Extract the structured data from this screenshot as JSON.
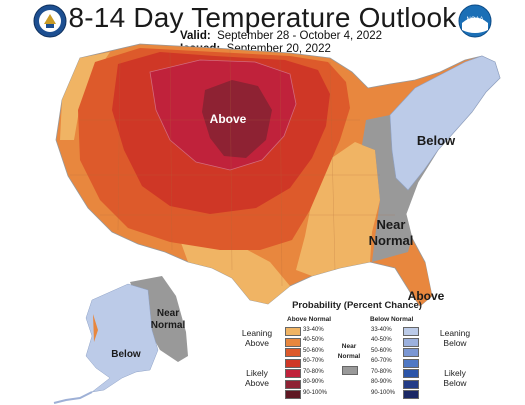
{
  "header": {
    "title": "8-14 Day Temperature Outlook",
    "valid_label": "Valid:",
    "valid_dates": "September 28 - October 4, 2022",
    "issued_label": "Issued:",
    "issued_date": "September 20, 2022"
  },
  "logos": {
    "left": "noaa-doc-seal",
    "right": "noaa-logo",
    "right_text": "NOAA"
  },
  "map_labels": {
    "above_north": "Above",
    "below_northeast": "Below",
    "near_normal_east_1": "Near",
    "near_normal_east_2": "Normal",
    "above_florida": "Above",
    "near_normal_alaska_1": "Near",
    "near_normal_alaska_2": "Normal",
    "below_alaska": "Below"
  },
  "legend": {
    "title": "Probability (Percent Chance)",
    "above_header": "Above Normal",
    "below_header": "Below Normal",
    "leaning_above": [
      "Leaning",
      "Above"
    ],
    "likely_above": [
      "Likely",
      "Above"
    ],
    "near_normal": [
      "Near",
      "Normal"
    ],
    "leaning_below": [
      "Leaning",
      "Below"
    ],
    "likely_below": [
      "Likely",
      "Below"
    ],
    "above_bins": [
      {
        "label": "33-40%",
        "color": "#f0b464"
      },
      {
        "label": "40-50%",
        "color": "#e8873e"
      },
      {
        "label": "50-60%",
        "color": "#dd5a2b"
      },
      {
        "label": "60-70%",
        "color": "#cf3726"
      },
      {
        "label": "70-80%",
        "color": "#c0223b"
      },
      {
        "label": "80-90%",
        "color": "#8e2233"
      },
      {
        "label": "90-100%",
        "color": "#5e1722"
      }
    ],
    "below_bins": [
      {
        "label": "33-40%",
        "color": "#bccbe8"
      },
      {
        "label": "40-50%",
        "color": "#9cb1de"
      },
      {
        "label": "50-60%",
        "color": "#7b97d3"
      },
      {
        "label": "60-70%",
        "color": "#4f78c4"
      },
      {
        "label": "70-80%",
        "color": "#2c55a8"
      },
      {
        "label": "80-90%",
        "color": "#233c87"
      },
      {
        "label": "90-100%",
        "color": "#1a2764"
      }
    ],
    "near_color": "#999999"
  }
}
